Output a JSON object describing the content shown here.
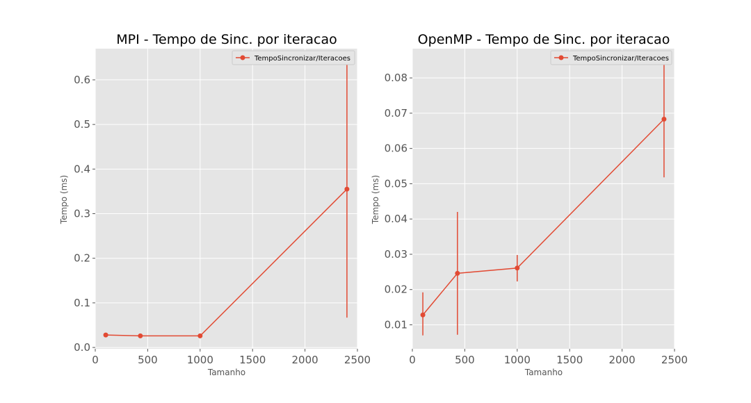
{
  "colors": {
    "background": "#e5e5e5",
    "grid": "#ffffff",
    "series": "#e24a33",
    "tick": "#555555"
  },
  "chart_data": [
    {
      "type": "line",
      "title": "MPI - Tempo de Sinc. por iteracao",
      "xlabel": "Tamanho",
      "ylabel": "Tempo (ms)",
      "xlim": [
        0,
        2500
      ],
      "ylim": [
        -0.003,
        0.67
      ],
      "grid": true,
      "legend": "top-right",
      "xticks": [
        0,
        500,
        1000,
        1500,
        2000,
        2500
      ],
      "xtick_labels": [
        "0",
        "500",
        "1000",
        "1500",
        "2000",
        "2500"
      ],
      "yticks": [
        0.0,
        0.1,
        0.2,
        0.3,
        0.4,
        0.5,
        0.6
      ],
      "ytick_labels": [
        "0.0",
        "0.1",
        "0.2",
        "0.3",
        "0.4",
        "0.5",
        "0.6"
      ],
      "series": [
        {
          "name": "TempoSincronizar/Iteracoes",
          "x": [
            100,
            430,
            1000,
            2400
          ],
          "y": [
            0.028,
            0.026,
            0.026,
            0.355
          ],
          "yerr_low": [
            0.028,
            0.026,
            0.026,
            0.067
          ],
          "yerr_high": [
            0.028,
            0.026,
            0.026,
            0.64
          ]
        }
      ]
    },
    {
      "type": "line",
      "title": "OpenMP - Tempo de Sinc. por iteracao",
      "xlabel": "Tamanho",
      "ylabel": "Tempo (ms)",
      "xlim": [
        0,
        2500
      ],
      "ylim": [
        0.0032,
        0.0883
      ],
      "grid": true,
      "legend": "top-right",
      "xticks": [
        0,
        500,
        1000,
        1500,
        2000,
        2500
      ],
      "xtick_labels": [
        "0",
        "500",
        "1000",
        "1500",
        "2000",
        "2500"
      ],
      "yticks": [
        0.01,
        0.02,
        0.03,
        0.04,
        0.05,
        0.06,
        0.07,
        0.08
      ],
      "ytick_labels": [
        "0.01",
        "0.02",
        "0.03",
        "0.04",
        "0.05",
        "0.06",
        "0.07",
        "0.08"
      ],
      "series": [
        {
          "name": "TempoSincronizar/Iteracoes",
          "x": [
            100,
            430,
            1000,
            2400
          ],
          "y": [
            0.0128,
            0.0246,
            0.0261,
            0.0683
          ],
          "yerr_low": [
            0.007,
            0.0072,
            0.0223,
            0.0518
          ],
          "yerr_high": [
            0.0192,
            0.042,
            0.0298,
            0.0845
          ]
        }
      ]
    }
  ]
}
